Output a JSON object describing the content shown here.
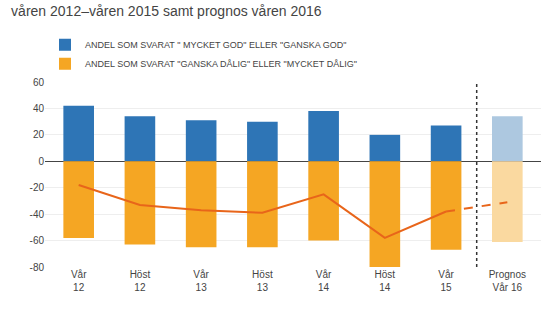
{
  "chart_data": {
    "type": "bar",
    "title": "våren 2012–våren 2015 samt prognos våren 2016",
    "categories": [
      "Vår\n12",
      "Höst\n12",
      "Vår\n13",
      "Höst\n13",
      "Vår\n14",
      "Höst\n14",
      "Vår\n15",
      "Prognos\nVår 16"
    ],
    "series": [
      {
        "name": "ANDEL SOM SVARAT \" MYCKET GOD\" ELLER \"GANSKA GOD\"",
        "values": [
          42,
          34,
          31,
          30,
          38,
          20,
          27,
          34
        ],
        "colors": [
          "#2E75B6",
          "#2E75B6",
          "#2E75B6",
          "#2E75B6",
          "#2E75B6",
          "#2E75B6",
          "#2E75B6",
          "#ADC8E0"
        ]
      },
      {
        "name": "ANDEL SOM SVARAT \"GANSKA DÅLIG\" ELLER \"MYCKET DÅLIG\"",
        "values": [
          -58,
          -63,
          -65,
          -65,
          -60,
          -80,
          -67,
          -61
        ],
        "colors": [
          "#F5A623",
          "#F5A623",
          "#F5A623",
          "#F5A623",
          "#F5A623",
          "#F5A623",
          "#F5A623",
          "#FAD9A0"
        ]
      },
      {
        "type": "line",
        "color": "#E8651A",
        "line_style": "solid",
        "values": [
          -18,
          -33,
          -37,
          -39,
          -25,
          -58,
          -38,
          null
        ]
      },
      {
        "type": "line",
        "color": "#E8651A",
        "line_style": "dashed",
        "values": [
          null,
          null,
          null,
          null,
          null,
          null,
          -38,
          -31
        ]
      }
    ],
    "ylim": [
      -80,
      60
    ],
    "yticks": [
      -80,
      -60,
      -40,
      -20,
      0,
      20,
      40,
      60
    ],
    "grid": true,
    "legend": "upper left"
  }
}
